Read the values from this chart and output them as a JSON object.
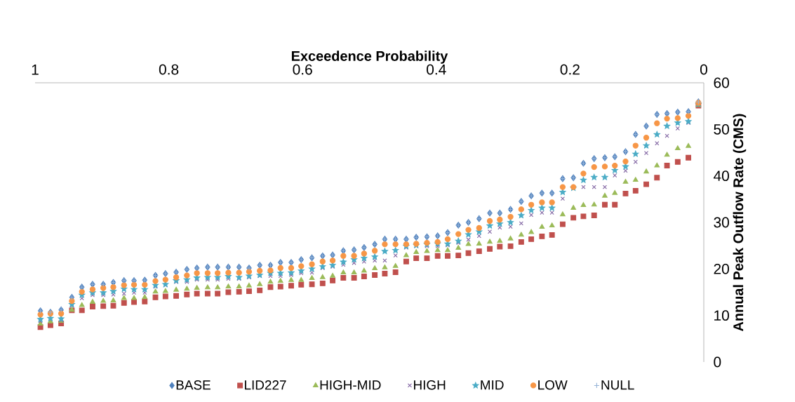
{
  "chart_data": {
    "type": "scatter",
    "xlabel": "Exceedence Probability",
    "ylabel": "Annual Peak Outflow Rate (CMS)",
    "x": [
      0.992,
      0.977,
      0.961,
      0.945,
      0.93,
      0.914,
      0.898,
      0.883,
      0.867,
      0.852,
      0.836,
      0.82,
      0.805,
      0.789,
      0.773,
      0.758,
      0.742,
      0.727,
      0.711,
      0.695,
      0.68,
      0.664,
      0.648,
      0.633,
      0.617,
      0.602,
      0.586,
      0.57,
      0.555,
      0.539,
      0.523,
      0.508,
      0.492,
      0.477,
      0.461,
      0.445,
      0.43,
      0.414,
      0.398,
      0.383,
      0.367,
      0.352,
      0.336,
      0.32,
      0.305,
      0.289,
      0.273,
      0.258,
      0.242,
      0.227,
      0.211,
      0.195,
      0.18,
      0.164,
      0.148,
      0.133,
      0.117,
      0.102,
      0.086,
      0.07,
      0.055,
      0.039,
      0.023,
      0.008
    ],
    "xlim": [
      1,
      0
    ],
    "xticks": [
      1,
      0.8,
      0.6,
      0.4,
      0.2,
      0
    ],
    "ylim": [
      0,
      60
    ],
    "yticks": [
      0,
      10,
      20,
      30,
      40,
      50,
      60
    ],
    "legend": "bottom",
    "series": [
      {
        "name": "BASE",
        "color": "#4f81bd",
        "marker": "diamond",
        "values": [
          11.0,
          10.7,
          11.2,
          13.9,
          16.1,
          16.7,
          16.7,
          17.1,
          17.5,
          17.5,
          17.6,
          18.6,
          19.0,
          19.3,
          19.9,
          20.2,
          20.4,
          20.4,
          20.4,
          20.4,
          20.2,
          20.8,
          20.8,
          21.4,
          21.4,
          22.0,
          22.4,
          22.8,
          23.0,
          23.9,
          24.1,
          24.6,
          25.3,
          26.4,
          26.4,
          26.4,
          26.8,
          26.9,
          27.1,
          27.8,
          29.4,
          30.0,
          30.8,
          32.0,
          32.0,
          32.8,
          34.5,
          35.7,
          36.3,
          36.3,
          39.4,
          39.6,
          42.7,
          43.7,
          43.9,
          44.1,
          45.2,
          48.9,
          50.7,
          53.2,
          53.4,
          53.7,
          53.8,
          55.9
        ]
      },
      {
        "name": "LID227",
        "color": "#c0504d",
        "marker": "square",
        "values": [
          7.5,
          7.9,
          8.3,
          11.1,
          11.1,
          11.9,
          12.0,
          12.1,
          12.7,
          12.9,
          13.0,
          13.9,
          14.1,
          14.2,
          14.5,
          14.7,
          14.7,
          14.7,
          15.0,
          15.1,
          15.2,
          15.4,
          16.1,
          16.2,
          16.4,
          16.6,
          16.7,
          16.9,
          17.5,
          18.1,
          18.1,
          18.4,
          18.7,
          19.0,
          19.3,
          21.6,
          22.3,
          22.3,
          22.8,
          22.8,
          22.9,
          23.4,
          23.8,
          24.3,
          24.8,
          24.9,
          25.8,
          26.4,
          27.0,
          27.3,
          29.6,
          31.0,
          31.3,
          31.5,
          33.8,
          33.8,
          36.2,
          36.8,
          38.2,
          39.6,
          42.2,
          43.0,
          43.9,
          55.1
        ]
      },
      {
        "name": "HIGH-MID",
        "color": "#9bbb59",
        "marker": "triangle",
        "values": [
          8.2,
          8.7,
          8.8,
          11.2,
          12.2,
          12.9,
          13.1,
          13.2,
          13.7,
          13.7,
          13.9,
          15.1,
          15.2,
          15.5,
          15.7,
          15.9,
          16.0,
          16.0,
          16.2,
          16.2,
          16.4,
          16.7,
          17.2,
          17.4,
          17.6,
          17.6,
          18.0,
          18.2,
          18.5,
          19.2,
          19.2,
          19.6,
          20.1,
          20.3,
          20.6,
          22.9,
          23.6,
          23.8,
          24.0,
          24.0,
          24.5,
          25.3,
          25.4,
          25.8,
          26.0,
          26.5,
          27.3,
          27.9,
          29.0,
          29.3,
          31.7,
          33.1,
          33.7,
          33.8,
          35.7,
          36.3,
          38.7,
          39.1,
          40.9,
          42.2,
          44.5,
          45.9,
          46.4,
          55.2
        ]
      },
      {
        "name": "HIGH",
        "color": "#8064a2",
        "marker": "cross",
        "values": [
          8.8,
          9.2,
          9.0,
          12.1,
          13.7,
          14.4,
          14.4,
          14.5,
          14.7,
          14.9,
          14.9,
          16.2,
          16.5,
          17.2,
          17.2,
          17.7,
          17.7,
          17.7,
          17.9,
          17.9,
          18.2,
          18.5,
          18.5,
          18.5,
          18.7,
          19.1,
          19.2,
          20.2,
          20.5,
          20.9,
          21.3,
          21.6,
          21.8,
          21.8,
          22.9,
          24.6,
          24.9,
          24.9,
          24.9,
          25.1,
          25.6,
          26.3,
          27.1,
          28.0,
          28.9,
          29.1,
          29.8,
          31.6,
          32.1,
          32.1,
          35.1,
          37.4,
          37.6,
          37.6,
          37.6,
          40.1,
          41.1,
          43.0,
          44.9,
          47.0,
          48.6,
          50.2,
          51.4,
          null
        ]
      },
      {
        "name": "MID",
        "color": "#4bacc6",
        "marker": "star",
        "values": [
          9.2,
          9.4,
          9.3,
          12.4,
          14.4,
          14.9,
          14.9,
          15.2,
          15.7,
          15.6,
          15.6,
          16.5,
          16.7,
          17.5,
          17.7,
          18.1,
          18.2,
          18.2,
          18.4,
          18.2,
          18.5,
          18.7,
          19.1,
          19.1,
          19.2,
          19.6,
          20.0,
          20.5,
          20.8,
          21.5,
          22.0,
          22.3,
          22.6,
          23.8,
          24.0,
          24.9,
          25.1,
          25.3,
          25.4,
          25.4,
          26.0,
          27.4,
          28.0,
          29.3,
          29.7,
          30.0,
          31.5,
          32.6,
          33.1,
          33.1,
          36.5,
          37.4,
          39.1,
          39.7,
          39.7,
          41.2,
          42.0,
          44.7,
          46.5,
          48.9,
          50.7,
          51.4,
          51.7,
          55.4
        ]
      },
      {
        "name": "LOW",
        "color": "#f79646",
        "marker": "circle",
        "values": [
          10.2,
          10.4,
          10.4,
          13.1,
          15.1,
          15.6,
          15.9,
          16.1,
          16.5,
          16.6,
          16.6,
          17.4,
          17.7,
          18.2,
          18.6,
          19.1,
          19.1,
          19.1,
          19.2,
          19.2,
          19.4,
          19.6,
          19.7,
          20.2,
          20.2,
          20.6,
          21.0,
          21.6,
          21.8,
          22.8,
          22.8,
          23.3,
          23.9,
          25.3,
          25.3,
          25.3,
          25.4,
          25.6,
          25.8,
          26.4,
          27.5,
          28.4,
          28.8,
          30.3,
          30.6,
          31.2,
          32.8,
          33.8,
          34.3,
          34.3,
          37.6,
          37.6,
          40.5,
          41.9,
          42.0,
          42.2,
          43.1,
          46.5,
          48.2,
          51.3,
          52.3,
          52.4,
          52.9,
          55.7
        ]
      },
      {
        "name": "NULL",
        "color": "#95b3d7",
        "marker": "plus",
        "values": [
          11.0,
          10.7,
          11.2,
          13.9,
          16.1,
          16.7,
          16.7,
          17.1,
          17.5,
          17.5,
          17.6,
          18.6,
          19.0,
          19.3,
          19.9,
          20.2,
          20.4,
          20.4,
          20.4,
          20.4,
          20.2,
          20.8,
          20.8,
          21.4,
          21.4,
          22.0,
          22.4,
          22.8,
          23.0,
          23.9,
          24.1,
          24.6,
          25.3,
          26.4,
          26.4,
          26.4,
          26.8,
          26.9,
          27.1,
          27.8,
          29.4,
          30.0,
          30.8,
          32.0,
          32.0,
          32.8,
          34.5,
          35.7,
          36.3,
          36.3,
          39.4,
          39.6,
          42.7,
          43.7,
          43.9,
          44.1,
          45.2,
          48.9,
          50.7,
          53.2,
          53.4,
          53.7,
          53.8,
          55.9
        ]
      }
    ]
  }
}
